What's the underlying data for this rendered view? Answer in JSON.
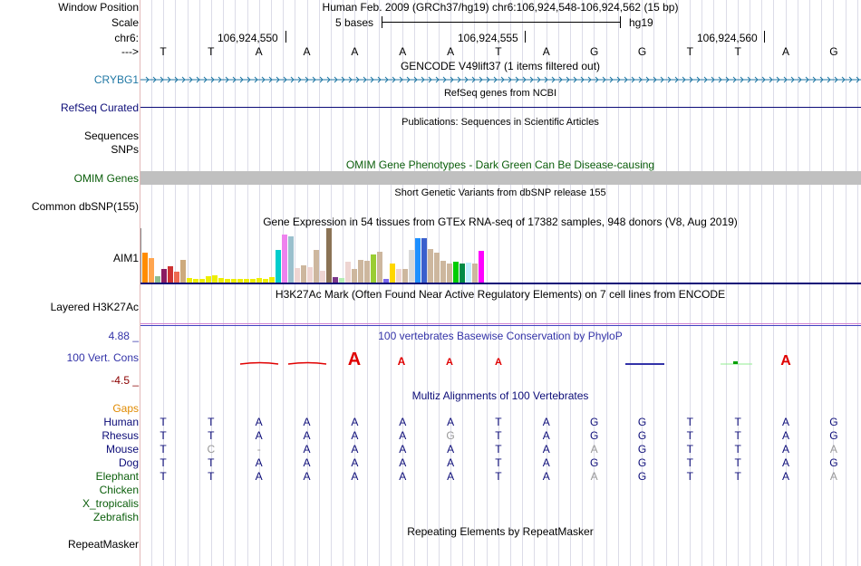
{
  "colors": {
    "gene_blue": "#1f77a4",
    "navy": "#0c0c78",
    "green": "#0b5e0b",
    "orange": "#e08a00",
    "dark_red": "#8b0000",
    "phylop_blue": "#3333a8",
    "omim_bar": "#c0c0c0"
  },
  "header": {
    "window_position_label": "Window Position",
    "window_position_value": "Human Feb. 2009 (GRCh37/hg19)   chr6:106,924,548-106,924,562 (15 bp)",
    "scale_label": "Scale",
    "scale_value": "5 bases",
    "scale_db": "hg19",
    "chrom_label": "chr6:",
    "coord_ticks": [
      "106,924,550",
      "106,924,555",
      "106,924,560"
    ],
    "strand_label": "--->",
    "bases": [
      "T",
      "T",
      "A",
      "A",
      "A",
      "A",
      "A",
      "T",
      "A",
      "G",
      "G",
      "T",
      "T",
      "A",
      "G"
    ]
  },
  "tracks": {
    "gencode": {
      "title": "GENCODE V49lift37 (1 items filtered out)",
      "label": "CRYBG1"
    },
    "refseq": {
      "title": "RefSeq genes from NCBI",
      "label": "RefSeq Curated"
    },
    "publications": {
      "title": "Publications: Sequences in Scientific Articles",
      "label": "Sequences"
    },
    "snps": {
      "label": "SNPs"
    },
    "omim": {
      "title": "OMIM Gene Phenotypes - Dark Green Can Be Disease-causing",
      "label": "OMIM Genes"
    },
    "dbsnp": {
      "title": "Short Genetic Variants from dbSNP release 155",
      "label": "Common dbSNP(155)"
    },
    "gtex": {
      "title": "Gene Expression in 54 tissues from GTEx RNA-seq of 17382 samples, 948 donors (V8, Aug 2019)",
      "label": "AIM1",
      "bars": [
        {
          "v": 0.55,
          "c": "#ff8c00"
        },
        {
          "v": 0.45,
          "c": "#ffa54f"
        },
        {
          "v": 0.12,
          "c": "#8fbc8f"
        },
        {
          "v": 0.25,
          "c": "#8b1c62"
        },
        {
          "v": 0.3,
          "c": "#cd3333"
        },
        {
          "v": 0.2,
          "c": "#ee6a50"
        },
        {
          "v": 0.42,
          "c": "#cdaa7d"
        },
        {
          "v": 0.08,
          "c": "#eeee00"
        },
        {
          "v": 0.06,
          "c": "#eeee00"
        },
        {
          "v": 0.06,
          "c": "#eeee00"
        },
        {
          "v": 0.12,
          "c": "#eeee00"
        },
        {
          "v": 0.14,
          "c": "#eeee00"
        },
        {
          "v": 0.08,
          "c": "#eeee00"
        },
        {
          "v": 0.06,
          "c": "#eeee00"
        },
        {
          "v": 0.06,
          "c": "#eeee00"
        },
        {
          "v": 0.06,
          "c": "#eeee00"
        },
        {
          "v": 0.06,
          "c": "#eeee00"
        },
        {
          "v": 0.06,
          "c": "#eeee00"
        },
        {
          "v": 0.08,
          "c": "#eeee00"
        },
        {
          "v": 0.06,
          "c": "#eeee00"
        },
        {
          "v": 0.1,
          "c": "#eeee00"
        },
        {
          "v": 0.6,
          "c": "#00cdcd"
        },
        {
          "v": 0.88,
          "c": "#ee82ee"
        },
        {
          "v": 0.85,
          "c": "#9ac0cd"
        },
        {
          "v": 0.26,
          "c": "#eed5d2"
        },
        {
          "v": 0.32,
          "c": "#cdb79e"
        },
        {
          "v": 0.28,
          "c": "#eed5d2"
        },
        {
          "v": 0.6,
          "c": "#cdb79e"
        },
        {
          "v": 0.22,
          "c": "#eed5d2"
        },
        {
          "v": 1.0,
          "c": "#8b7355"
        },
        {
          "v": 0.1,
          "c": "#7a378b"
        },
        {
          "v": 0.08,
          "c": "#b4eeb4"
        },
        {
          "v": 0.38,
          "c": "#eed5d2"
        },
        {
          "v": 0.25,
          "c": "#cdb79e"
        },
        {
          "v": 0.42,
          "c": "#cdb79e"
        },
        {
          "v": 0.4,
          "c": "#cdb79e"
        },
        {
          "v": 0.52,
          "c": "#9acd32"
        },
        {
          "v": 0.56,
          "c": "#cdb79e"
        },
        {
          "v": 0.06,
          "c": "#7a67ee"
        },
        {
          "v": 0.35,
          "c": "#ffd700"
        },
        {
          "v": 0.25,
          "c": "#eed5d2"
        },
        {
          "v": 0.25,
          "c": "#cdb79e"
        },
        {
          "v": 0.6,
          "c": "#d9d9d9"
        },
        {
          "v": 0.82,
          "c": "#1e90ff"
        },
        {
          "v": 0.82,
          "c": "#3a5fcd"
        },
        {
          "v": 0.62,
          "c": "#cdb79e"
        },
        {
          "v": 0.55,
          "c": "#cdb79e"
        },
        {
          "v": 0.4,
          "c": "#cdb79e"
        },
        {
          "v": 0.35,
          "c": "#cdb79e"
        },
        {
          "v": 0.38,
          "c": "#00cd00"
        },
        {
          "v": 0.35,
          "c": "#008b45"
        },
        {
          "v": 0.36,
          "c": "#bfefff"
        },
        {
          "v": 0.35,
          "c": "#cdb79e"
        },
        {
          "v": 0.58,
          "c": "#ff00ff"
        }
      ]
    },
    "h3k27ac": {
      "title": "H3K27Ac Mark (Often Found Near Active Regulatory Elements) on 7 cell lines from ENCODE",
      "label": "Layered H3K27Ac"
    },
    "phylop": {
      "title": "100 vertebrates Basewise Conservation by PhyloP",
      "label": "100 Vert. Cons",
      "max": "4.88 _",
      "min": "-4.5 _"
    },
    "multiz": {
      "title": "Multiz Alignments of 100 Vertebrates",
      "gaps_label": "Gaps",
      "species": [
        {
          "name": "Human",
          "seq": [
            "T",
            "T",
            "A",
            "A",
            "A",
            "A",
            "A",
            "T",
            "A",
            "G",
            "G",
            "T",
            "T",
            "A",
            "G"
          ]
        },
        {
          "name": "Rhesus",
          "seq": [
            "T",
            "T",
            "A",
            "A",
            "A",
            "A",
            "G",
            "T",
            "A",
            "G",
            "G",
            "T",
            "T",
            "A",
            "G"
          ]
        },
        {
          "name": "Mouse",
          "seq": [
            "T",
            "C",
            "-",
            "A",
            "A",
            "A",
            "A",
            "T",
            "A",
            "A",
            "G",
            "T",
            "T",
            "A",
            "A"
          ]
        },
        {
          "name": "Dog",
          "seq": [
            "T",
            "T",
            "A",
            "A",
            "A",
            "A",
            "A",
            "T",
            "A",
            "G",
            "G",
            "T",
            "T",
            "A",
            "G"
          ]
        },
        {
          "name": "Elephant",
          "seq": [
            "T",
            "T",
            "A",
            "A",
            "A",
            "A",
            "A",
            "T",
            "A",
            "A",
            "G",
            "T",
            "T",
            "A",
            "A"
          ]
        },
        {
          "name": "Chicken",
          "seq": []
        },
        {
          "name": "X_tropicalis",
          "seq": []
        },
        {
          "name": "Zebrafish",
          "seq": []
        }
      ]
    },
    "repeatmasker": {
      "title": "Repeating Elements by RepeatMasker",
      "label": "RepeatMasker"
    }
  }
}
